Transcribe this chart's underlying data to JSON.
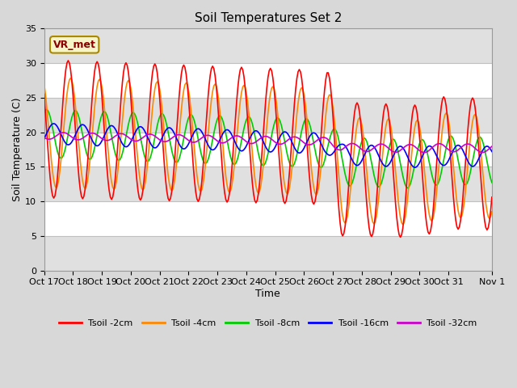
{
  "title": "Soil Temperatures Set 2",
  "xlabel": "Time",
  "ylabel": "Soil Temperature (C)",
  "ylim": [
    0,
    35
  ],
  "yticks": [
    0,
    5,
    10,
    15,
    20,
    25,
    30,
    35
  ],
  "x_tick_labels": [
    "Oct 17",
    "Oct 18",
    "Oct 19",
    "Oct 20",
    "Oct 21",
    "Oct 22",
    "Oct 23",
    "Oct 24",
    "Oct 25",
    "Oct 26",
    "Oct 27",
    "Oct 28",
    "Oct 29",
    "Oct 30",
    "Oct 31",
    "Nov 1"
  ],
  "annotation_text": "VR_met",
  "colors": {
    "Tsoil -2cm": "#ff0000",
    "Tsoil -4cm": "#ff8800",
    "Tsoil -8cm": "#00cc00",
    "Tsoil -16cm": "#0000ff",
    "Tsoil -32cm": "#cc00cc"
  },
  "fig_bg": "#d8d8d8",
  "band_white": "#ffffff",
  "band_gray": "#e0e0e0",
  "grid_color": "#c0c0c0",
  "title_fontsize": 11,
  "label_fontsize": 9,
  "tick_fontsize": 8,
  "legend_fontsize": 8,
  "linewidth": 1.2
}
